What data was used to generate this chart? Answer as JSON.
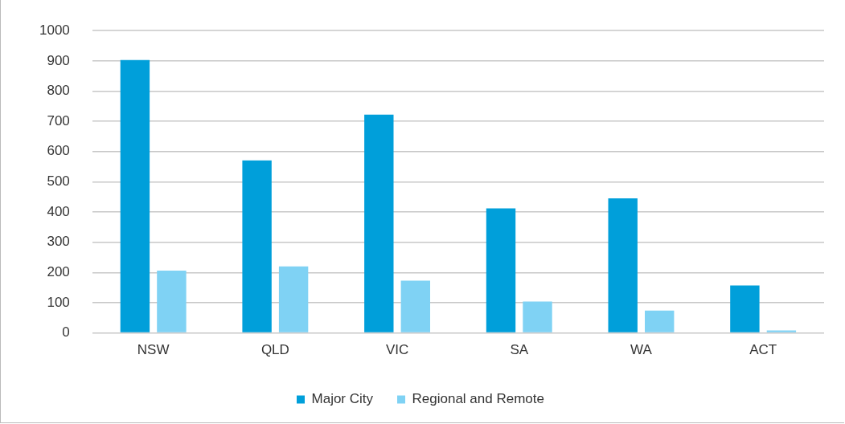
{
  "chart_data": {
    "type": "bar",
    "categories": [
      "NSW",
      "QLD",
      "VIC",
      "SA",
      "WA",
      "ACT"
    ],
    "series": [
      {
        "name": "Major City",
        "color": "#009fda",
        "values": [
          903,
          571,
          722,
          412,
          445,
          157
        ]
      },
      {
        "name": "Regional and Remote",
        "color": "#7fd2f4",
        "values": [
          206,
          220,
          173,
          104,
          74,
          8
        ]
      }
    ],
    "ylim": [
      0,
      1000
    ],
    "yticks": [
      0,
      100,
      200,
      300,
      400,
      500,
      600,
      700,
      800,
      900,
      1000
    ],
    "grid": "y",
    "legend": "bottom"
  }
}
